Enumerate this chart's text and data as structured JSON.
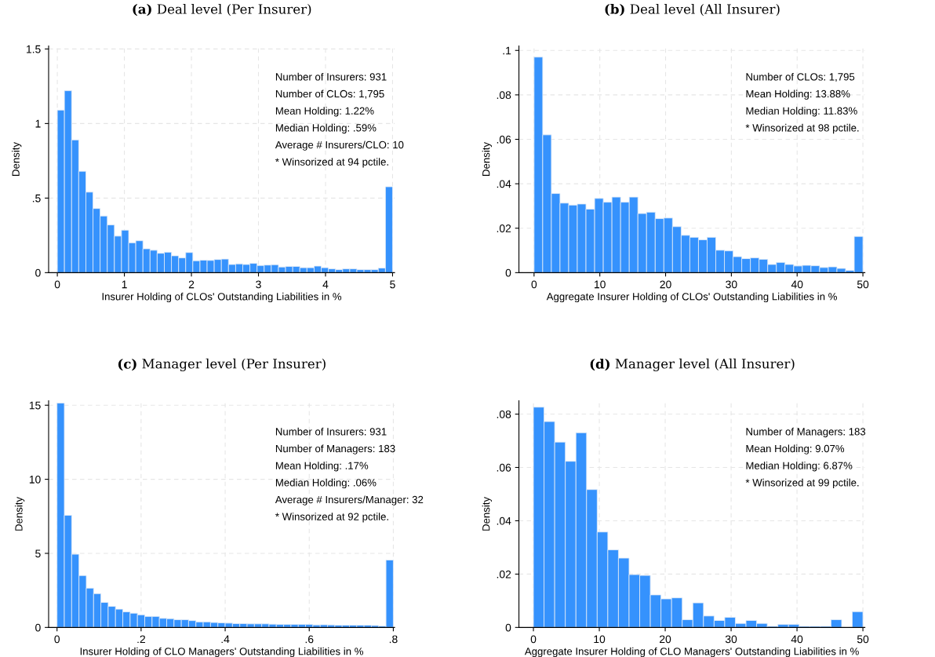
{
  "chart_data": [
    {
      "type": "histogram",
      "title": "(a) Deal level (Per Insurer)",
      "xlabel": "Insurer Holding of CLOs' Outstanding Liabilities in %",
      "ylabel": "Density",
      "color": "#3592fd",
      "grid": true,
      "bins": [
        0,
        0.106,
        0.213,
        0.319,
        0.426,
        0.532,
        0.638,
        0.745,
        0.851,
        0.957,
        1.064,
        1.17,
        1.277,
        1.383,
        1.489,
        1.596,
        1.702,
        1.809,
        1.915,
        2.021,
        2.128,
        2.234,
        2.34,
        2.447,
        2.553,
        2.66,
        2.766,
        2.872,
        2.979,
        3.085,
        3.191,
        3.298,
        3.404,
        3.511,
        3.617,
        3.723,
        3.83,
        3.936,
        4.043,
        4.149,
        4.255,
        4.362,
        4.468,
        4.574,
        4.681,
        4.787,
        4.894,
        5
      ],
      "values": [
        1.09,
        1.22,
        0.89,
        0.68,
        0.54,
        0.43,
        0.38,
        0.32,
        0.245,
        0.285,
        0.2,
        0.214,
        0.16,
        0.15,
        0.13,
        0.137,
        0.113,
        0.099,
        0.135,
        0.08,
        0.084,
        0.082,
        0.088,
        0.091,
        0.055,
        0.059,
        0.055,
        0.062,
        0.048,
        0.051,
        0.053,
        0.038,
        0.042,
        0.042,
        0.033,
        0.033,
        0.044,
        0.033,
        0.026,
        0.02,
        0.026,
        0.026,
        0.02,
        0.02,
        0.02,
        0.031,
        0.576
      ],
      "xlim": [
        -0.13,
        5.03
      ],
      "ylim": [
        0,
        1.52
      ],
      "xticks": [
        0,
        1,
        2,
        3,
        4,
        5
      ],
      "yticks": [
        0,
        {
          "value": 0.5,
          "label": ".5"
        },
        1,
        1.5
      ],
      "annotations": [
        "Number of Insurers: 931",
        "Number of CLOs: 1,795",
        "Mean Holding: 1.22%",
        "Median Holding: .59%",
        "Average # Insurers/CLO: 10",
        "* Winsorized at 94 pctile."
      ]
    },
    {
      "type": "histogram",
      "title": "(b) Deal level (All Insurer)",
      "xlabel": "Aggregate Insurer Holding of CLOs' Outstanding Liabilities in %",
      "ylabel": "Density",
      "color": "#3592fd",
      "grid": true,
      "bins": [
        0,
        1.316,
        2.632,
        3.947,
        5.263,
        6.579,
        7.895,
        9.211,
        10.526,
        11.842,
        13.158,
        14.474,
        15.789,
        17.105,
        18.421,
        19.737,
        21.053,
        22.368,
        23.684,
        25,
        26.316,
        27.632,
        28.947,
        30.263,
        31.579,
        32.895,
        34.211,
        35.526,
        36.842,
        38.158,
        39.474,
        40.789,
        42.105,
        43.421,
        44.737,
        46.053,
        47.368,
        48.684,
        50
      ],
      "values": [
        0.097,
        0.062,
        0.0356,
        0.0313,
        0.0304,
        0.0309,
        0.0286,
        0.0334,
        0.0317,
        0.034,
        0.0317,
        0.034,
        0.0266,
        0.0272,
        0.0243,
        0.0246,
        0.0207,
        0.0168,
        0.0159,
        0.0148,
        0.0159,
        0.0101,
        0.0098,
        0.0072,
        0.0063,
        0.0067,
        0.006,
        0.0037,
        0.0046,
        0.0037,
        0.003,
        0.0033,
        0.0031,
        0.0023,
        0.0026,
        0.0019,
        0.001,
        0.0163
      ],
      "xlim": [
        -2.3,
        50.3
      ],
      "ylim": [
        0,
        0.102
      ],
      "xticks": [
        0,
        10,
        20,
        30,
        40,
        50
      ],
      "yticks": [
        0,
        {
          "value": 0.02,
          "label": ".02"
        },
        {
          "value": 0.04,
          "label": ".04"
        },
        {
          "value": 0.06,
          "label": ".06"
        },
        {
          "value": 0.08,
          "label": ".08"
        },
        {
          "value": 0.1,
          "label": ".1"
        }
      ],
      "annotations": [
        "Number of CLOs: 1,795",
        "Mean Holding: 13.88%",
        "Median Holding: 11.83%",
        "* Winsorized at 98 pctile."
      ]
    },
    {
      "type": "histogram",
      "title": "(c) Manager level (Per Insurer)",
      "xlabel": "Insurer Holding of CLO Managers' Outstanding Liabilities in %",
      "ylabel": "Density",
      "color": "#3592fd",
      "grid": true,
      "bins": [
        0,
        0.0174,
        0.0348,
        0.0522,
        0.0696,
        0.087,
        0.1043,
        0.1217,
        0.1391,
        0.1565,
        0.1739,
        0.1913,
        0.2087,
        0.2261,
        0.2435,
        0.2609,
        0.2783,
        0.2957,
        0.313,
        0.3304,
        0.3478,
        0.3652,
        0.3826,
        0.4,
        0.4174,
        0.4348,
        0.4522,
        0.4696,
        0.487,
        0.5043,
        0.5217,
        0.5391,
        0.5565,
        0.5739,
        0.5913,
        0.6087,
        0.6261,
        0.6435,
        0.6609,
        0.6783,
        0.6957,
        0.713,
        0.7304,
        0.7478,
        0.7652,
        0.7826,
        0.8
      ],
      "values": [
        15.14,
        7.57,
        4.94,
        3.5,
        2.65,
        2.28,
        1.69,
        1.42,
        1.23,
        1.05,
        0.96,
        0.85,
        0.74,
        0.74,
        0.61,
        0.59,
        0.52,
        0.52,
        0.46,
        0.37,
        0.37,
        0.33,
        0.31,
        0.29,
        0.26,
        0.26,
        0.24,
        0.24,
        0.24,
        0.22,
        0.2,
        0.2,
        0.2,
        0.2,
        0.2,
        0.17,
        0.18,
        0.17,
        0.15,
        0.15,
        0.15,
        0.15,
        0.15,
        0.13,
        0.09,
        4.55
      ],
      "xlim": [
        -0.02,
        0.803
      ],
      "ylim": [
        0,
        15.3
      ],
      "xticks": [
        0,
        {
          "value": 0.2,
          "label": ".2"
        },
        {
          "value": 0.4,
          "label": ".4"
        },
        {
          "value": 0.6,
          "label": ".6"
        },
        {
          "value": 0.8,
          "label": ".8"
        }
      ],
      "yticks": [
        0,
        5,
        10,
        15
      ],
      "annotations": [
        "Number of Insurers: 931",
        "Number of Managers: 183",
        "Mean Holding: .17%",
        "Median Holding: .06%",
        "Average # Insurers/Manager: 32",
        "* Winsorized at 92 pctile."
      ]
    },
    {
      "type": "histogram",
      "title": "(d) Manager level (All Insurer)",
      "xlabel": "Aggregate Insurer Holding of CLO Managers' Outstanding Liabilities in %",
      "ylabel": "Density",
      "color": "#3592fd",
      "grid": true,
      "bins": [
        0,
        1.613,
        3.226,
        4.839,
        6.452,
        8.065,
        9.677,
        11.29,
        12.903,
        14.516,
        16.129,
        17.742,
        19.355,
        20.968,
        22.581,
        24.194,
        25.806,
        27.419,
        29.032,
        30.645,
        32.258,
        33.871,
        35.484,
        37.097,
        38.71,
        40.323,
        41.935,
        43.548,
        45.161,
        46.774,
        48.387,
        50
      ],
      "values": [
        0.0826,
        0.0772,
        0.0695,
        0.0623,
        0.073,
        0.0517,
        0.0358,
        0.0291,
        0.026,
        0.0198,
        0.0195,
        0.0122,
        0.0107,
        0.0111,
        0.0029,
        0.0092,
        0.0043,
        0.0026,
        0.0038,
        0.0015,
        0.0026,
        0.0015,
        0.0004,
        0.0011,
        0.0011,
        0.0004,
        0.0004,
        0.0004,
        0.0029,
        0,
        0.0059
      ],
      "xlim": [
        -2.2,
        50.3
      ],
      "ylim": [
        0,
        0.085
      ],
      "xticks": [
        0,
        10,
        20,
        30,
        40,
        50
      ],
      "yticks": [
        0,
        {
          "value": 0.02,
          "label": ".02"
        },
        {
          "value": 0.04,
          "label": ".04"
        },
        {
          "value": 0.06,
          "label": ".06"
        },
        {
          "value": 0.08,
          "label": ".08"
        }
      ],
      "annotations": [
        "Number of Managers: 183",
        "Mean Holding: 9.07%",
        "Median Holding: 6.87%",
        "* Winsorized at 99 pctile."
      ]
    }
  ]
}
